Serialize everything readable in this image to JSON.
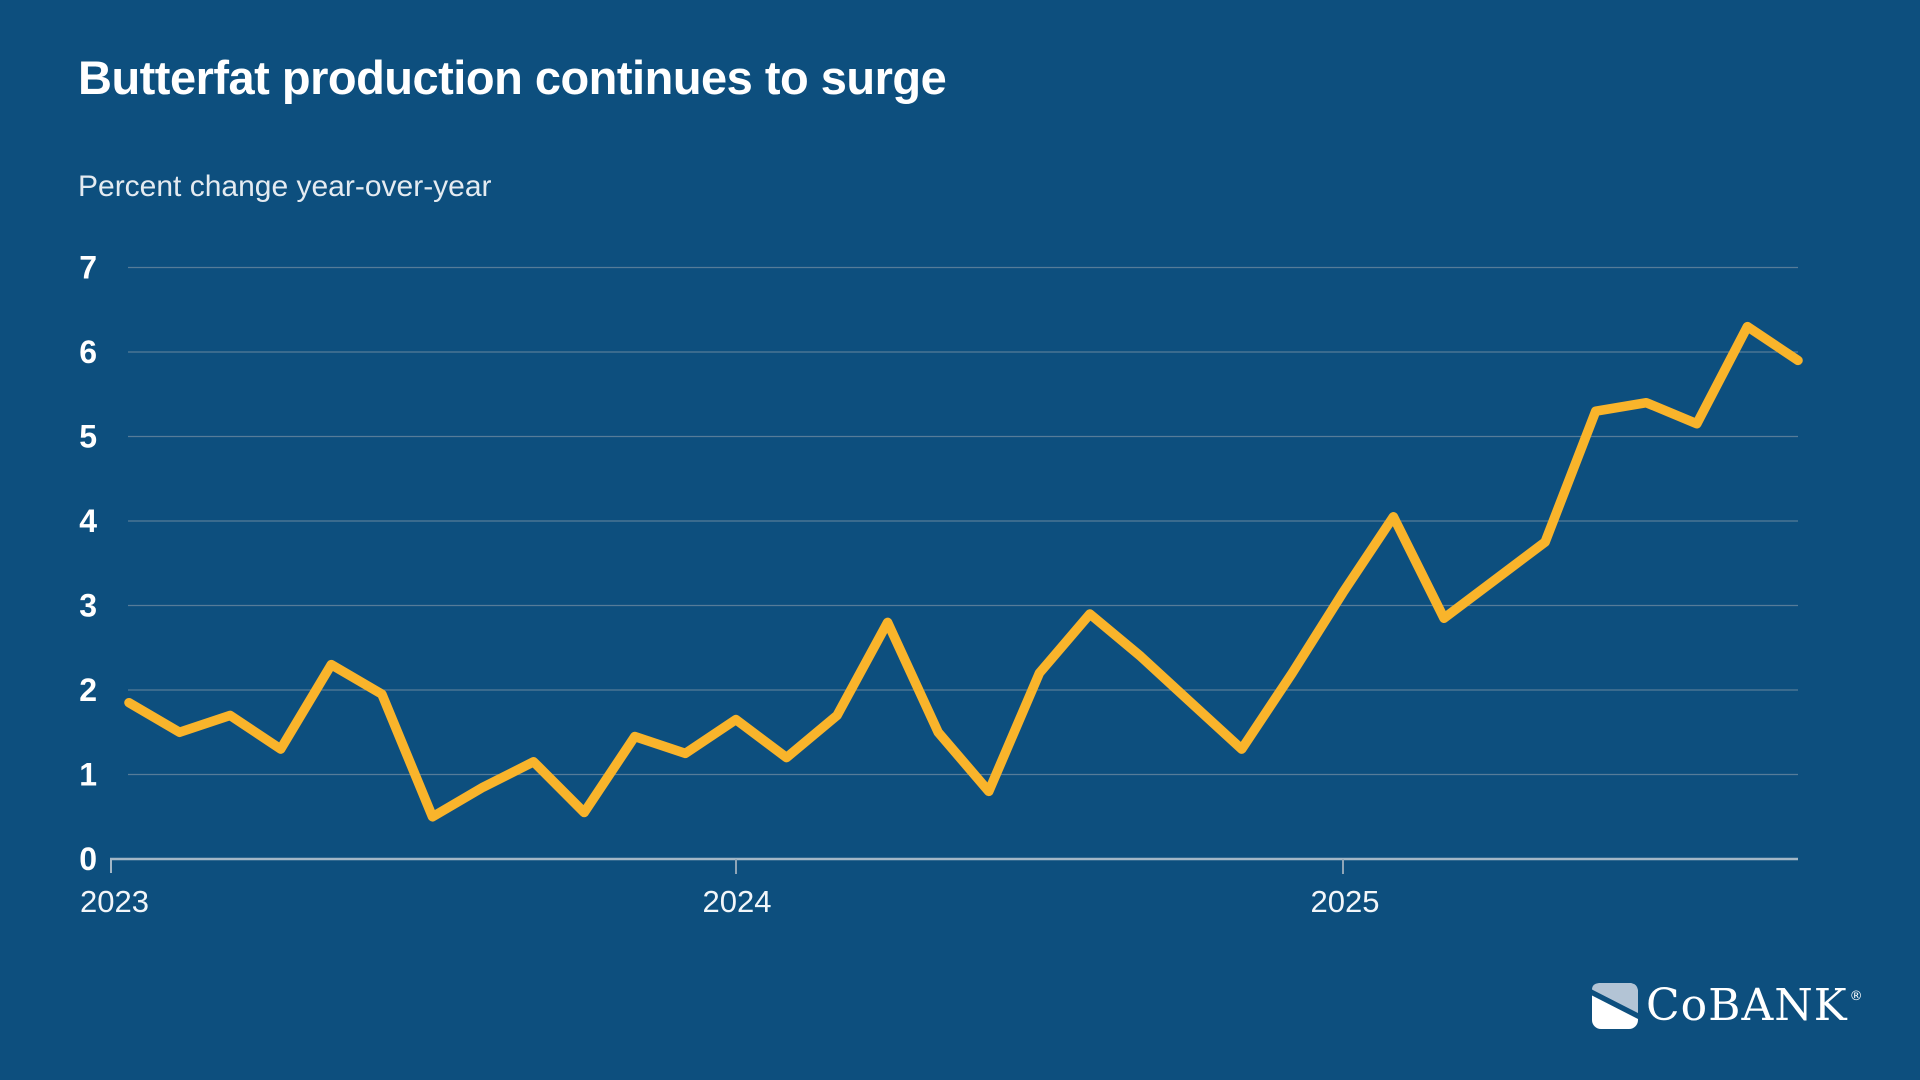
{
  "header": {
    "title": "Butterfat production continues to surge",
    "subtitle": "Percent change year-over-year"
  },
  "chart_data": {
    "type": "line",
    "title": "Butterfat production continues to surge",
    "ylabel": "Percent change year-over-year",
    "xlabel": "",
    "x": [
      "Jan 2023",
      "Feb 2023",
      "Mar 2023",
      "Apr 2023",
      "May 2023",
      "Jun 2023",
      "Jul 2023",
      "Aug 2023",
      "Sep 2023",
      "Oct 2023",
      "Nov 2023",
      "Dec 2023",
      "Jan 2024",
      "Feb 2024",
      "Mar 2024",
      "Apr 2024",
      "May 2024",
      "Jun 2024",
      "Jul 2024",
      "Aug 2024",
      "Sep 2024",
      "Oct 2024",
      "Nov 2024",
      "Dec 2024",
      "Jan 2025",
      "Feb 2025",
      "Mar 2025",
      "Apr 2025",
      "May 2025",
      "Jun 2025",
      "Jul 2025",
      "Aug 2025",
      "Sep 2025",
      "Oct 2025"
    ],
    "values": [
      1.85,
      1.5,
      1.7,
      1.3,
      2.3,
      1.95,
      0.5,
      0.85,
      1.15,
      0.55,
      1.45,
      1.25,
      1.65,
      1.2,
      1.7,
      2.8,
      1.5,
      0.8,
      2.2,
      2.9,
      2.4,
      1.85,
      1.3,
      2.2,
      3.15,
      4.05,
      2.85,
      3.3,
      3.75,
      5.3,
      5.4,
      5.15,
      6.3,
      5.9
    ],
    "x_ticks": [
      "2023",
      "2024",
      "2025"
    ],
    "y_ticks": [
      "0",
      "1",
      "2",
      "3",
      "4",
      "5",
      "6",
      "7"
    ],
    "ylim": [
      0,
      7
    ],
    "grid": true,
    "legend_position": "none",
    "line_color": "#F9B42B"
  },
  "colors": {
    "background": "#0D4F7E",
    "line": "#F9B42B",
    "gridline": "#7E95A7",
    "axis": "#A3B7C6",
    "title_text": "#FFFFFF",
    "subtitle_text": "#E4EBF1",
    "logo_icon_fill": "#B3C4D5"
  },
  "logo": {
    "text": "CoBANK",
    "registered": "®"
  }
}
